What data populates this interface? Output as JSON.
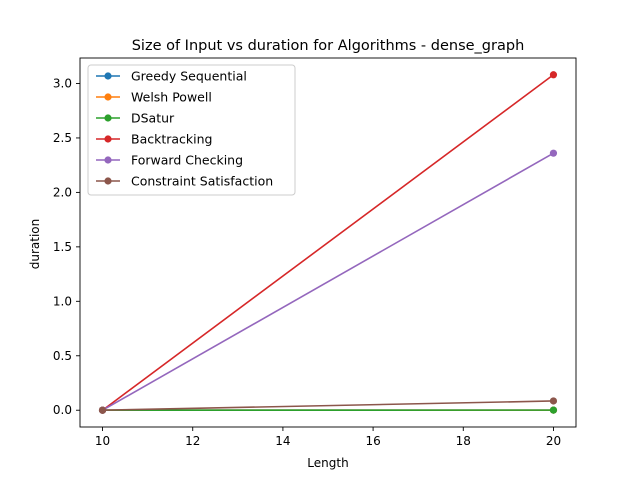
{
  "chart_data": {
    "type": "line",
    "title": "Size of Input vs duration for Algorithms - dense_graph",
    "xlabel": "Length",
    "ylabel": "duration",
    "x": [
      10,
      20
    ],
    "xlim": [
      9.5,
      20.5
    ],
    "ylim": [
      -0.154,
      3.234
    ],
    "xticks": [
      "10",
      "12",
      "14",
      "16",
      "18",
      "20"
    ],
    "yticks": [
      "0.0",
      "0.5",
      "1.0",
      "1.5",
      "2.0",
      "2.5",
      "3.0"
    ],
    "grid": false,
    "legend_position": "top-left",
    "series": [
      {
        "name": "Greedy Sequential",
        "color": "#1f77b4",
        "values": [
          0.0,
          0.001
        ]
      },
      {
        "name": "Welsh Powell",
        "color": "#ff7f0e",
        "values": [
          0.0,
          0.001
        ]
      },
      {
        "name": "DSatur",
        "color": "#2ca02c",
        "values": [
          0.0,
          0.001
        ]
      },
      {
        "name": "Backtracking",
        "color": "#d62728",
        "values": [
          0.0,
          3.08
        ]
      },
      {
        "name": "Forward Checking",
        "color": "#9467bd",
        "values": [
          0.0,
          2.36
        ]
      },
      {
        "name": "Constraint Satisfaction",
        "color": "#8c564b",
        "values": [
          0.0,
          0.085
        ]
      }
    ]
  }
}
